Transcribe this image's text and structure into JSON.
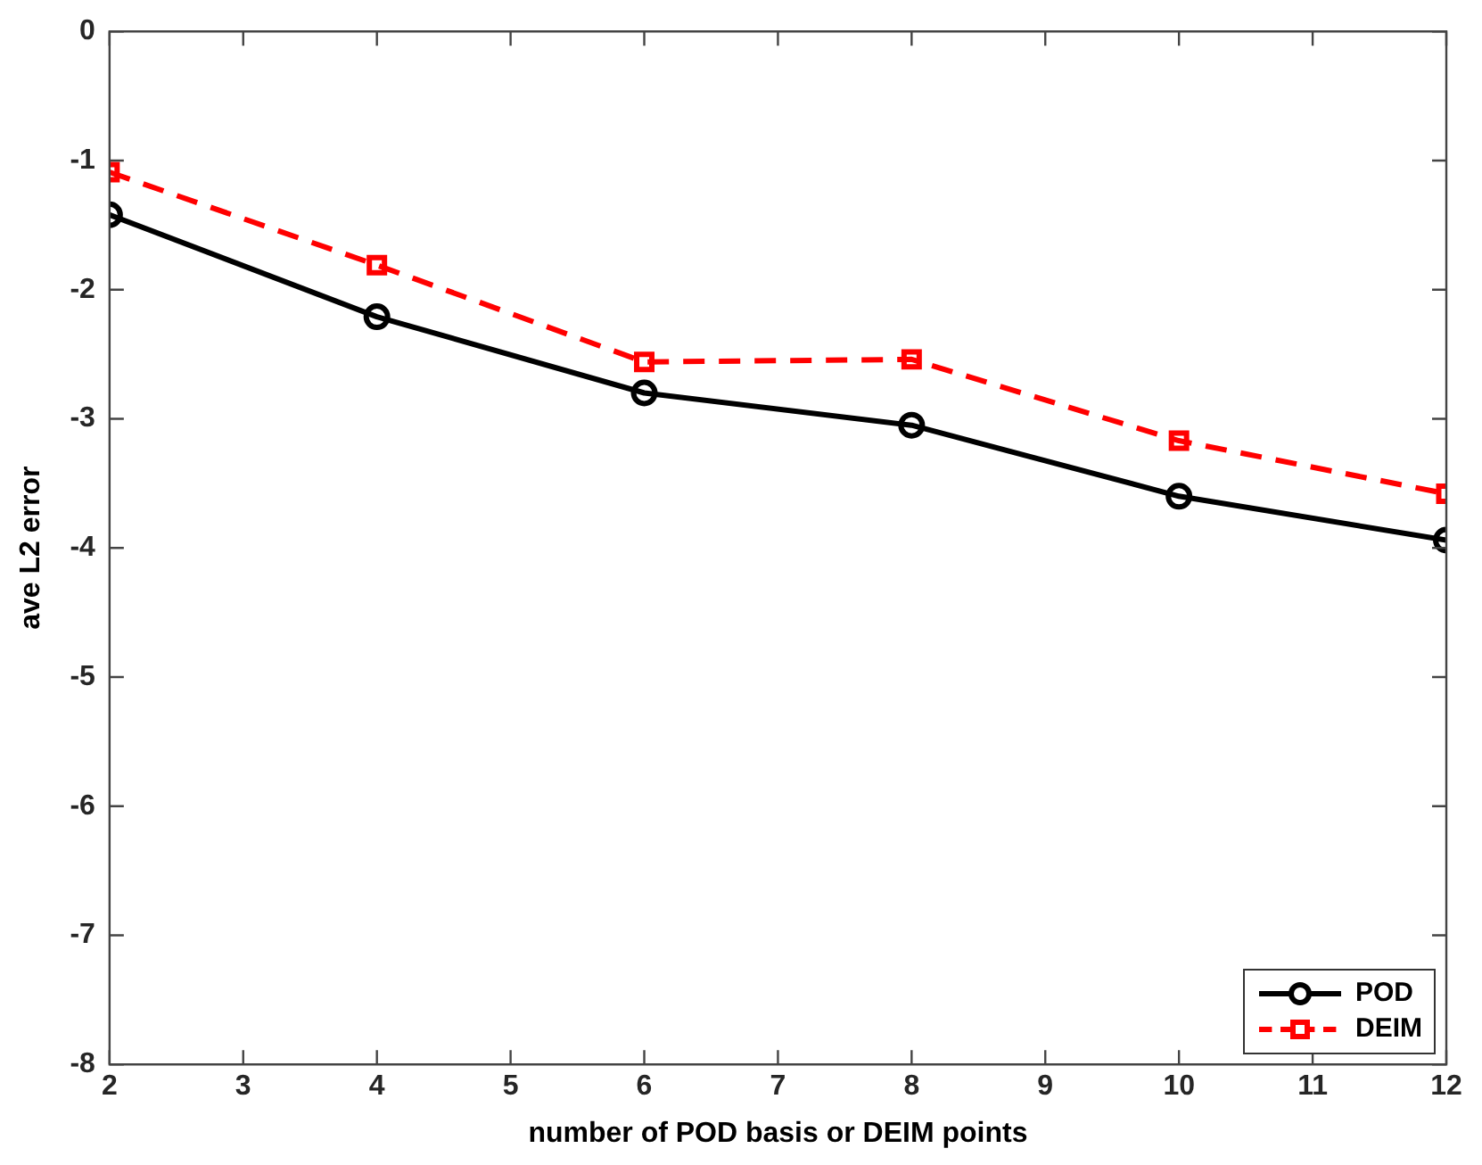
{
  "chart_data": {
    "type": "line",
    "xlabel": "number of POD basis or DEIM points",
    "ylabel": "ave L2 error",
    "x": [
      2,
      4,
      6,
      8,
      10,
      12
    ],
    "series": [
      {
        "name": "POD",
        "color": "#000000",
        "values": [
          -1.42,
          -2.21,
          -2.8,
          -3.05,
          -3.6,
          -3.94
        ],
        "marker": "circle",
        "line_style": "solid"
      },
      {
        "name": "DEIM",
        "color": "#ff0000",
        "values": [
          -1.09,
          -1.81,
          -2.56,
          -2.54,
          -3.17,
          -3.58
        ],
        "marker": "square",
        "line_style": "dashed"
      }
    ],
    "xlim": [
      2,
      12
    ],
    "xticks": [
      2,
      3,
      4,
      5,
      6,
      7,
      8,
      9,
      10,
      11,
      12
    ],
    "ylim": [
      -8,
      0
    ],
    "yticks": [
      -8,
      -7,
      -6,
      -5,
      -4,
      -3,
      -2,
      -1,
      0
    ],
    "grid": false,
    "legend": "bottom right"
  }
}
